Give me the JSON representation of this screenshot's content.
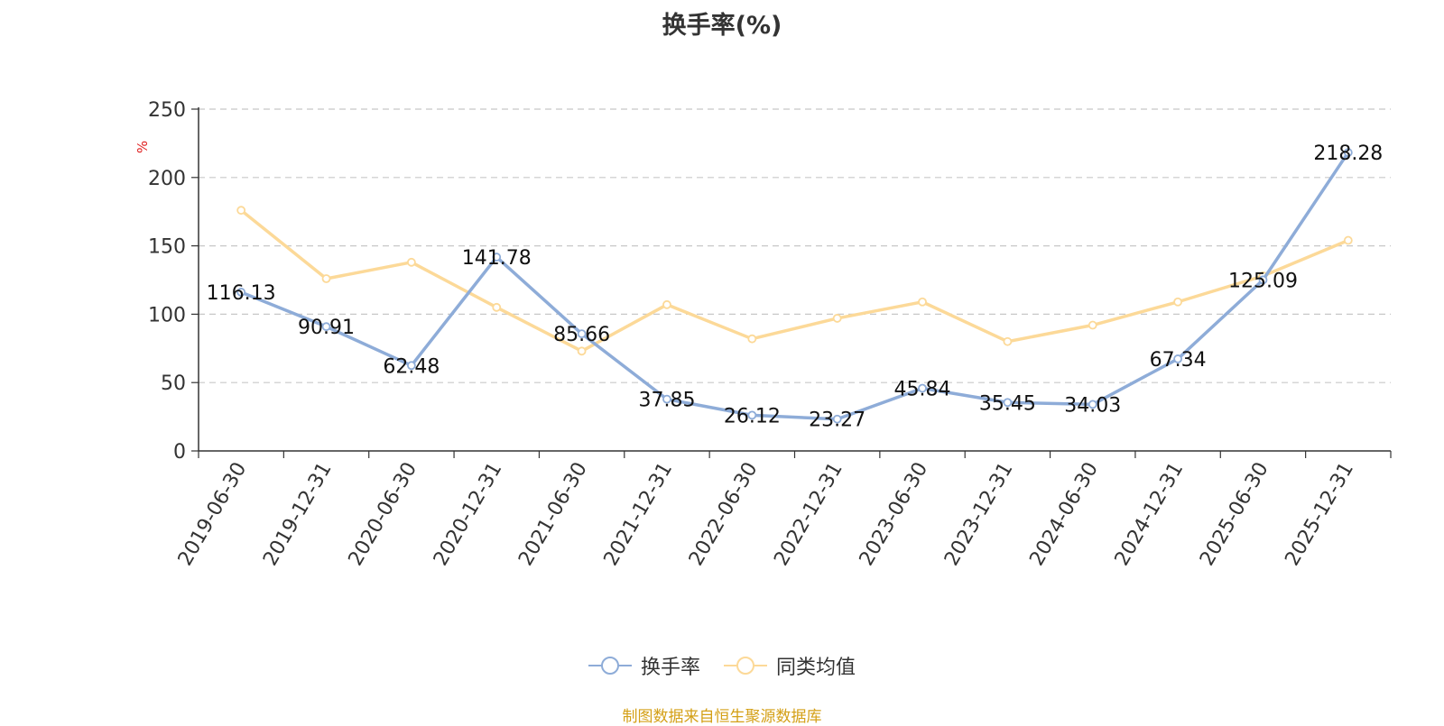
{
  "chart_data": {
    "type": "line",
    "title": "换手率(%)",
    "ylabel": "%",
    "ylim": [
      0,
      250
    ],
    "yticks": [
      0,
      50,
      100,
      150,
      200,
      250
    ],
    "grid": true,
    "legend_position": "bottom",
    "categories": [
      "2019-06-30",
      "2019-12-31",
      "2020-06-30",
      "2020-12-31",
      "2021-06-30",
      "2021-12-31",
      "2022-06-30",
      "2022-12-31",
      "2023-06-30",
      "2023-12-31",
      "2024-06-30",
      "2024-12-31",
      "2025-06-30",
      "2025-12-31"
    ],
    "series": [
      {
        "name": "换手率",
        "color": "#8eacd8",
        "values": [
          116.13,
          90.91,
          62.48,
          141.78,
          85.66,
          37.85,
          26.12,
          23.27,
          45.84,
          35.45,
          34.03,
          67.34,
          125.09,
          218.28
        ],
        "labels": [
          "116.13",
          "90.91",
          "62.48",
          "141.78",
          "85.66",
          "37.85",
          "26.12",
          "23.27",
          "45.84",
          "35.45",
          "34.03",
          "67.34",
          "125.09",
          "218.28"
        ]
      },
      {
        "name": "同类均值",
        "color": "#fcd998",
        "values": [
          176,
          126,
          138,
          105,
          73,
          107,
          82,
          97,
          109,
          80,
          92,
          109,
          128,
          154
        ]
      }
    ]
  },
  "footer": {
    "source": "制图数据来自恒生聚源数据库"
  }
}
